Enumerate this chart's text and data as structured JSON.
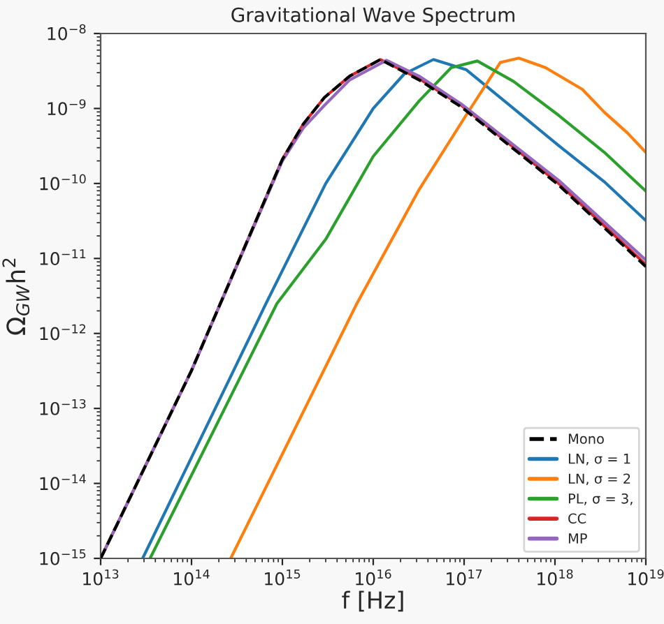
{
  "chart_data": {
    "type": "line",
    "title": "Gravitational Wave Spectrum",
    "xlabel": "f [Hz]",
    "ylabel": "Ω$_{GW}$h$^{2}$",
    "log": "xy",
    "grid": false,
    "legend": "bottom right",
    "marker": "none",
    "xlim": [
      10000000000000.0,
      1e+19
    ],
    "ylim": [
      1e-15,
      1e-08
    ],
    "xticks": [
      {
        "value": 10000000000000.0,
        "label": "10$^{13}$"
      },
      {
        "value": 100000000000000.0,
        "label": "10$^{14}$"
      },
      {
        "value": 1000000000000000.0,
        "label": "10$^{15}$"
      },
      {
        "value": 1e+16,
        "label": "10$^{16}$"
      },
      {
        "value": 1e+17,
        "label": "10$^{17}$"
      },
      {
        "value": 1e+18,
        "label": "10$^{18}$"
      },
      {
        "value": 1e+19,
        "label": "10$^{19}$"
      }
    ],
    "yticks": [
      {
        "value": 1e-15,
        "label": "10$^{−15}$"
      },
      {
        "value": 1e-14,
        "label": "10$^{−14}$"
      },
      {
        "value": 1e-13,
        "label": "10$^{−13}$"
      },
      {
        "value": 1e-12,
        "label": "10$^{−12}$"
      },
      {
        "value": 1e-11,
        "label": "10$^{−11}$"
      },
      {
        "value": 1e-10,
        "label": "10$^{−10}$"
      },
      {
        "value": 1e-09,
        "label": "10$^{−9}$"
      },
      {
        "value": 1e-08,
        "label": "10$^{−8}$"
      }
    ],
    "series": [
      {
        "name": "Mono",
        "color": "#000000",
        "line_style": "dashed",
        "x": [
          10000000000000.0,
          100000000000000.0,
          1000000000000000.0,
          1700000000000000.0,
          2900000000000000.0,
          5500000000000000.0,
          1.2e+16,
          3.2e+16,
          9.3e+16,
          1.1e+18,
          1e+19
        ],
        "values": [
          1e-15,
          3.2e-13,
          2.1e-10,
          6.2e-10,
          1.4e-09,
          2.7e-09,
          4.5e-09,
          2.4e-09,
          1.05e-09,
          9.5e-11,
          7.8e-12
        ]
      },
      {
        "name": "LN, σ = 1",
        "color": "#1f77b4",
        "x": [
          29000000000000.0,
          660000000000000.0,
          3000000000000000.0,
          1e+16,
          2.2e+16,
          4.6e+16,
          1.05e+17,
          3.5e+17,
          1.1e+18,
          3.5e+18,
          1e+19
        ],
        "values": [
          1e-15,
          2.5e-12,
          1e-10,
          1e-09,
          2.9e-09,
          4.5e-09,
          3.3e-09,
          1e-09,
          3.2e-10,
          1.05e-10,
          3.2e-11
        ]
      },
      {
        "name": "LN, σ = 2",
        "color": "#ff7f0e",
        "x": [
          270000000000000.0,
          6600000000000000.0,
          3.2e+16,
          1.05e+17,
          2.5e+17,
          4e+17,
          7.9e+17,
          2e+18,
          3.5e+18,
          6.3e+18,
          1e+19
        ],
        "values": [
          1e-15,
          2.5e-12,
          8.3e-11,
          8.1e-10,
          4.1e-09,
          4.7e-09,
          3.5e-09,
          1.8e-09,
          8.9e-10,
          4.7e-10,
          2.6e-10
        ]
      },
      {
        "name": "PL, σ = 3,",
        "color": "#2ca02c",
        "x": [
          35000000000000.0,
          870000000000000.0,
          3000000000000000.0,
          1e+16,
          3.2e+16,
          7.2e+16,
          1.4e+17,
          3.5e+17,
          1.1e+18,
          3.5e+18,
          1e+19
        ],
        "values": [
          1e-15,
          2.5e-12,
          1.8e-11,
          2.3e-10,
          1.26e-09,
          3.5e-09,
          4.3e-09,
          2.3e-09,
          8.1e-10,
          2.6e-10,
          7.9e-11
        ]
      },
      {
        "name": "CC",
        "color": "#d62728",
        "x": [
          10000000000000.0,
          100000000000000.0,
          1000000000000000.0,
          1700000000000000.0,
          2900000000000000.0,
          5500000000000000.0,
          1.2e+16,
          3.2e+16,
          9.3e+16,
          1.1e+18,
          1e+19
        ],
        "values": [
          1e-15,
          3.2e-13,
          2.1e-10,
          6.2e-10,
          1.4e-09,
          2.7e-09,
          4.5e-09,
          2.5e-09,
          1.1e-09,
          1e-10,
          8.3e-12
        ]
      },
      {
        "name": "MP",
        "color": "#9467bd",
        "x": [
          10000000000000.0,
          100000000000000.0,
          1000000000000000.0,
          1700000000000000.0,
          2900000000000000.0,
          5500000000000000.0,
          1.4e+16,
          3.2e+16,
          9.3e+16,
          1.1e+18,
          1e+19
        ],
        "values": [
          1e-15,
          3.2e-13,
          2e-10,
          5.5e-10,
          1.1e-09,
          2.4e-09,
          4.4e-09,
          2.7e-09,
          1.15e-09,
          1.1e-10,
          9.5e-12
        ]
      }
    ]
  }
}
